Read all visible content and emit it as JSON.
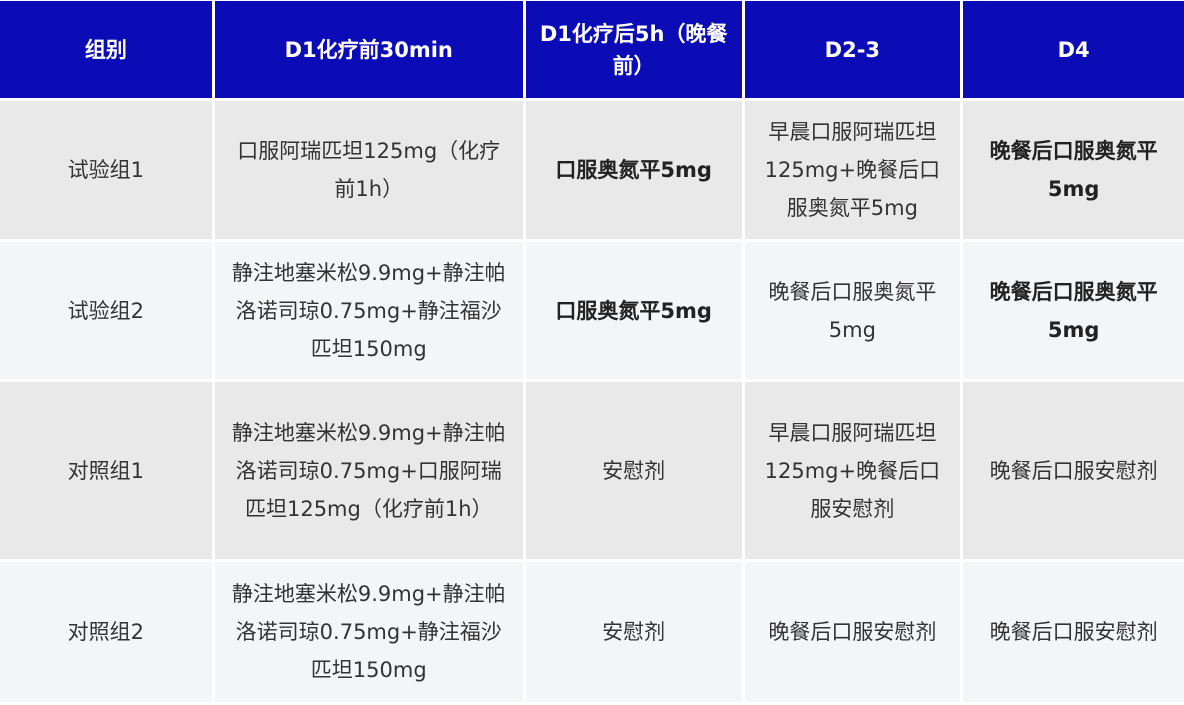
{
  "colors": {
    "header_bg": "#0b0cb6",
    "row_odd": "#e9e9ea",
    "row_even": "#f4f5f7"
  },
  "headers": [
    "组别",
    "D1化疗前30min",
    "D1化疗后5h（晚餐前）",
    "D2-3",
    "D4"
  ],
  "rows": [
    {
      "group": "试验组1",
      "d1_pre": "口服阿瑞匹坦125mg（化疗前1h）",
      "d1_post": "口服奥氮平5mg",
      "d2_3": "早晨口服阿瑞匹坦125mg+晚餐后口服奥氮平5mg",
      "d4": "晚餐后口服奥氮平5mg"
    },
    {
      "group": "试验组2",
      "d1_pre": "静注地塞米松9.9mg+静注帕洛诺司琼0.75mg+静注福沙匹坦150mg",
      "d1_post": "口服奥氮平5mg",
      "d2_3": "晚餐后口服奥氮平5mg",
      "d4": "晚餐后口服奥氮平5mg"
    },
    {
      "group": "对照组1",
      "d1_pre": "静注地塞米松9.9mg+静注帕洛诺司琼0.75mg+口服阿瑞匹坦125mg（化疗前1h）",
      "d1_post": "安慰剂",
      "d2_3": "早晨口服阿瑞匹坦125mg+晚餐后口服安慰剂",
      "d4": "晚餐后口服安慰剂"
    },
    {
      "group": "对照组2",
      "d1_pre": "静注地塞米松9.9mg+静注帕洛诺司琼0.75mg+静注福沙匹坦150mg",
      "d1_post": "安慰剂",
      "d2_3": "晚餐后口服安慰剂",
      "d4": "晚餐后口服安慰剂"
    }
  ]
}
